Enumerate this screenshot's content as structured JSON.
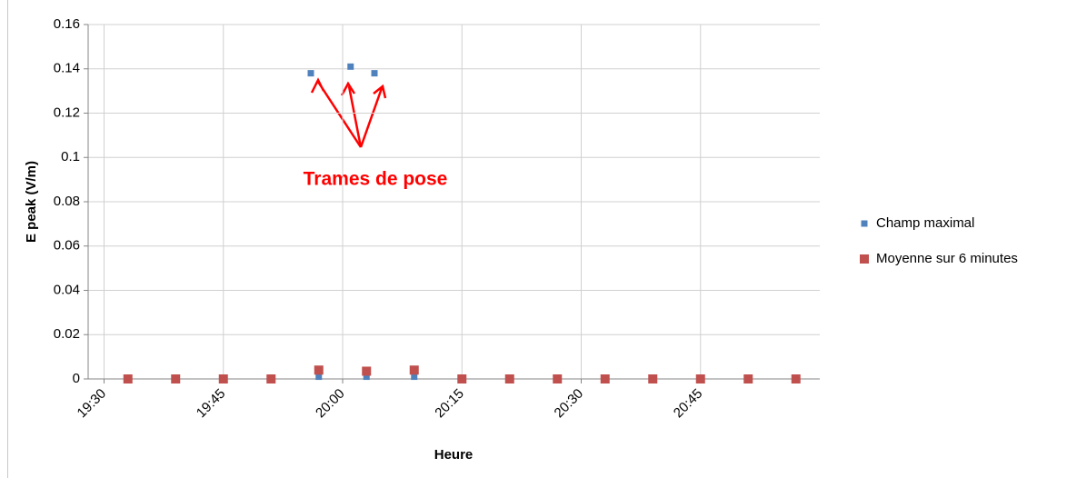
{
  "chart_data": {
    "type": "scatter",
    "x_label": "Heure",
    "y_label": "E peak (V/m)",
    "annotation": "Trames de pose",
    "xlim": [
      "19:28",
      "21:00"
    ],
    "xticks": [
      "19:30",
      "19:45",
      "20:00",
      "20:15",
      "20:30",
      "20:45"
    ],
    "ylim": [
      0,
      0.16
    ],
    "yticks": [
      0,
      0.02,
      0.04,
      0.06,
      0.08,
      0.1,
      0.12,
      0.14,
      0.16
    ],
    "grid": true,
    "legend": "right",
    "series": [
      {
        "name": "Champ maximal",
        "color": "#4f81bd",
        "x": [
          "19:33",
          "19:39",
          "19:45",
          "19:51",
          "19:56",
          "19:57",
          "20:01",
          "20:03",
          "20:04",
          "20:09",
          "20:15",
          "20:21",
          "20:27",
          "20:33",
          "20:39",
          "20:45",
          "20:51",
          "20:57"
        ],
        "values": [
          0,
          0,
          0,
          0,
          0.138,
          0.001,
          0.141,
          0.001,
          0.138,
          0.001,
          0,
          0,
          0,
          0,
          0,
          0,
          0,
          0
        ]
      },
      {
        "name": "Moyenne sur 6 minutes",
        "color": "#c0504d",
        "x": [
          "19:33",
          "19:39",
          "19:45",
          "19:51",
          "19:57",
          "20:03",
          "20:09",
          "20:15",
          "20:21",
          "20:27",
          "20:33",
          "20:39",
          "20:45",
          "20:51",
          "20:57"
        ],
        "values": [
          0,
          0,
          0,
          0,
          0.004,
          0.0035,
          0.004,
          0,
          0,
          0,
          0,
          0,
          0,
          0,
          0
        ]
      }
    ]
  }
}
